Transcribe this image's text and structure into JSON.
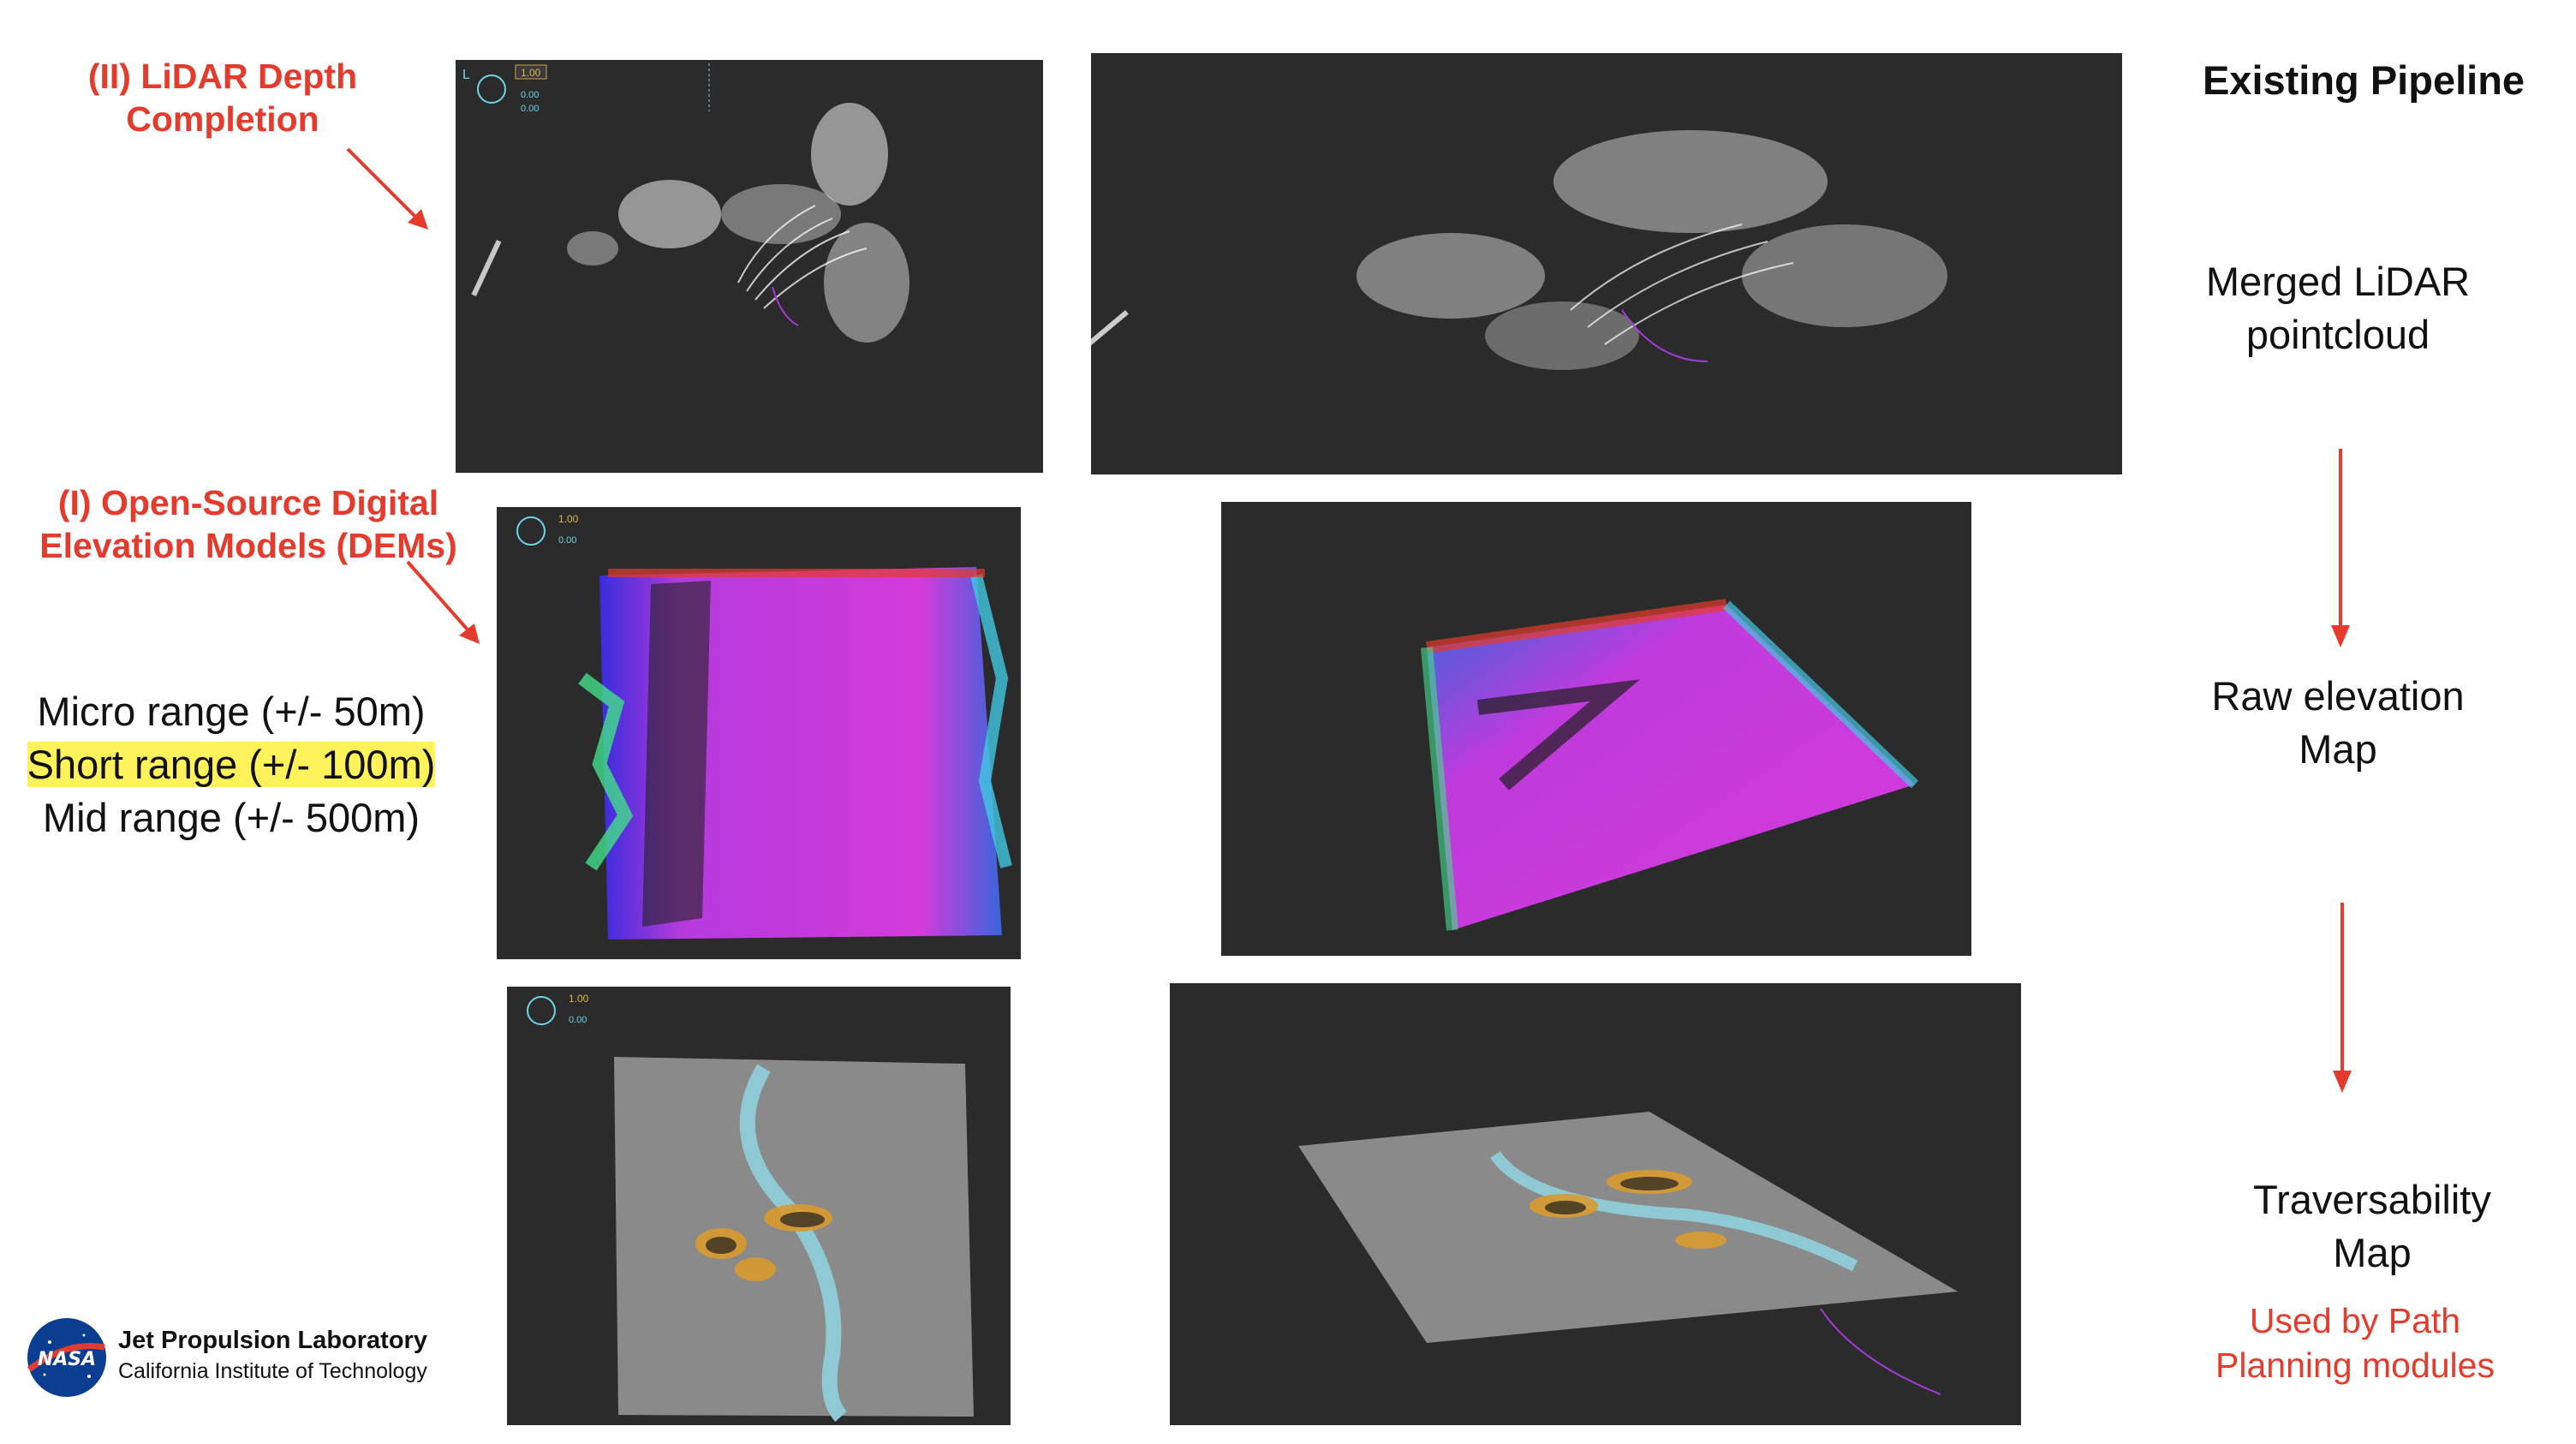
{
  "left_labels": {
    "lidar_depth": "(II) LiDAR Depth Completion",
    "open_source_dem": "(I) Open-Source Digital Elevation Models (DEMs)"
  },
  "ranges": {
    "micro": "Micro range (+/- 50m)",
    "short": "Short range (+/- 100m)",
    "mid": "Mid range (+/- 500m)"
  },
  "pipeline": {
    "title": "Existing Pipeline",
    "step1": "Merged LiDAR pointcloud",
    "step2": "Raw elevation Map",
    "step3": "Traversability Map",
    "step3_note": "Used by Path Planning modules"
  },
  "logo": {
    "org": "Jet Propulsion Laboratory",
    "institute": "California Institute of Technology",
    "badge": "NASA"
  },
  "hud": {
    "value": "1.00",
    "zero": "0.00",
    "letter": "L"
  },
  "colors": {
    "accent_red": "#e53b2c",
    "highlight": "#fff25a",
    "panel_bg": "#2b2b2b",
    "elevation_magenta": "#e63cf0",
    "water": "#8fc9d3"
  }
}
